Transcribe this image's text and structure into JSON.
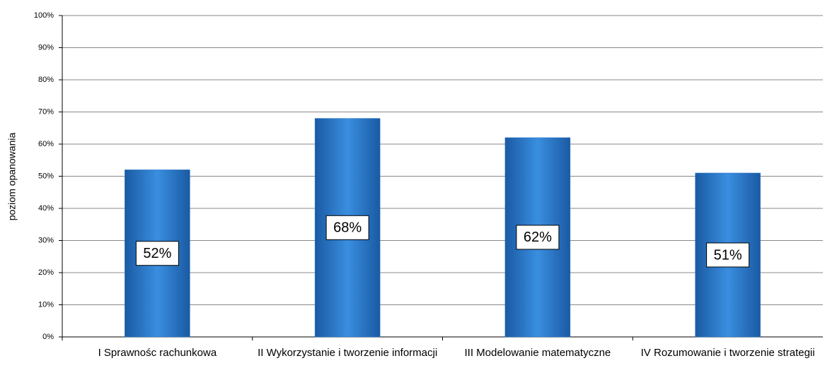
{
  "chart_data": {
    "type": "bar",
    "y_label": "poziom opanowania",
    "categories": [
      "I Sprawnośc rachunkowa",
      "II Wykorzystanie i tworzenie informacji",
      "III Modelowanie matematyczne",
      "IV Rozumowanie i tworzenie strategii"
    ],
    "values": [
      52,
      68,
      62,
      51
    ],
    "value_labels": [
      "52%",
      "68%",
      "62%",
      "51%"
    ],
    "color": "#2a78c8",
    "ylim": [
      0,
      100
    ],
    "yticks": [
      {
        "value": 0,
        "label": "0%"
      },
      {
        "value": 10,
        "label": "10%"
      },
      {
        "value": 20,
        "label": "20%"
      },
      {
        "value": 30,
        "label": "30%"
      },
      {
        "value": 40,
        "label": "40%"
      },
      {
        "value": 50,
        "label": "50%"
      },
      {
        "value": 60,
        "label": "60%"
      },
      {
        "value": 70,
        "label": "70%"
      },
      {
        "value": 80,
        "label": "80%"
      },
      {
        "value": 90,
        "label": "90%"
      },
      {
        "value": 100,
        "label": "100%"
      }
    ],
    "grid": true
  }
}
